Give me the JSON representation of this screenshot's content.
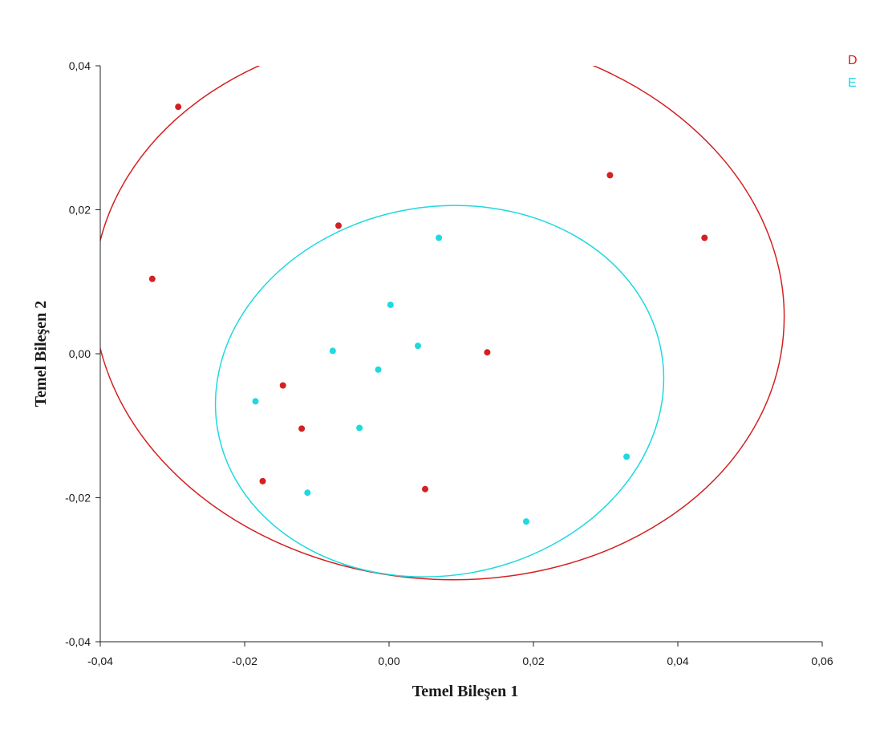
{
  "chart_data": {
    "type": "scatter",
    "title": "",
    "xlabel": "Temel Bileşen 1",
    "ylabel": "Temel Bileşen 2",
    "xlim": [
      -0.04,
      0.06
    ],
    "ylim": [
      -0.04,
      0.04
    ],
    "x_ticks": [
      -0.04,
      -0.02,
      0.0,
      0.02,
      0.04,
      0.06
    ],
    "y_ticks": [
      -0.04,
      -0.02,
      0.0,
      0.02,
      0.04
    ],
    "x_tick_labels": [
      "-0,04",
      "-0,02",
      "0,00",
      "0,02",
      "0,04",
      "0,06"
    ],
    "y_tick_labels": [
      "-0,04",
      "-0,02",
      "0,00",
      "0,02",
      "0,04"
    ],
    "grid": false,
    "legend_position": "top-right",
    "series": [
      {
        "name": "D",
        "color": "#d42020",
        "points": [
          {
            "x": -0.0292,
            "y": 0.0343
          },
          {
            "x": -0.0328,
            "y": 0.0104
          },
          {
            "x": -0.007,
            "y": 0.0178
          },
          {
            "x": 0.0306,
            "y": 0.0248
          },
          {
            "x": 0.0437,
            "y": 0.0161
          },
          {
            "x": 0.0136,
            "y": 0.0002
          },
          {
            "x": -0.0147,
            "y": -0.0044
          },
          {
            "x": -0.0121,
            "y": -0.0104
          },
          {
            "x": -0.0175,
            "y": -0.0177
          },
          {
            "x": 0.005,
            "y": -0.0188
          }
        ],
        "ellipse": {
          "cx": 0.0069,
          "cy": 0.0067,
          "rx": 0.0479,
          "ry": 0.038,
          "rotation_deg": 5
        }
      },
      {
        "name": "E",
        "color": "#1ed9e0",
        "points": [
          {
            "x": 0.0069,
            "y": 0.0161
          },
          {
            "x": 0.0002,
            "y": 0.0068
          },
          {
            "x": -0.0078,
            "y": 0.0004
          },
          {
            "x": 0.004,
            "y": 0.0011
          },
          {
            "x": -0.0015,
            "y": -0.0022
          },
          {
            "x": -0.0185,
            "y": -0.0066
          },
          {
            "x": -0.0041,
            "y": -0.0103
          },
          {
            "x": -0.0113,
            "y": -0.0193
          },
          {
            "x": 0.0329,
            "y": -0.0143
          },
          {
            "x": 0.019,
            "y": -0.0233
          }
        ],
        "ellipse": {
          "cx": 0.007,
          "cy": -0.0052,
          "rx": 0.0312,
          "ry": 0.0256,
          "rotation_deg": -10
        }
      }
    ]
  }
}
